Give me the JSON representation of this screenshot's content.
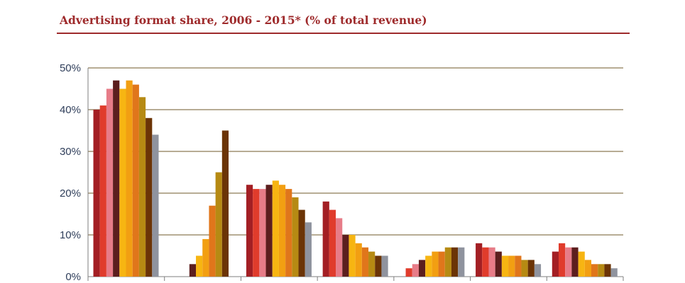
{
  "title": "Advertising format share, 2006 - 2015* (% of total revenue)",
  "colors": {
    "title": "#9e2a2b",
    "gridline": "#8c7a55",
    "axis": "#7f7f7f",
    "tick_text": "#2f3e5a",
    "bars": [
      "#a31f24",
      "#e03c2c",
      "#e77c88",
      "#5c1e1e",
      "#f7b512",
      "#f29f12",
      "#e0761b",
      "#b68a13",
      "#6b3406",
      "#8f939e"
    ]
  },
  "chart_data": {
    "type": "bar",
    "title": "Advertising format share, 2006 - 2015* (% of total revenue)",
    "xlabel": "",
    "ylabel": "",
    "ylim": [
      0,
      50
    ],
    "yticks": [
      "0%",
      "10%",
      "20%",
      "30%",
      "40%",
      "50%"
    ],
    "grid": true,
    "legend": "none",
    "groups": 7,
    "bars_per_group": 10,
    "values": [
      [
        40,
        41,
        45,
        47,
        45,
        47,
        46,
        43,
        38,
        34
      ],
      [
        null,
        null,
        null,
        3,
        5,
        9,
        17,
        25,
        35,
        null
      ],
      [
        22,
        21,
        21,
        22,
        23,
        22,
        21,
        19,
        16,
        13
      ],
      [
        18,
        16,
        14,
        10,
        10,
        8,
        7,
        6,
        5,
        5
      ],
      [
        null,
        2,
        3,
        4,
        5,
        6,
        6,
        7,
        7,
        7
      ],
      [
        8,
        7,
        7,
        6,
        5,
        5,
        5,
        4,
        4,
        3
      ],
      [
        6,
        8,
        7,
        7,
        6,
        4,
        3,
        3,
        3,
        2
      ]
    ]
  }
}
